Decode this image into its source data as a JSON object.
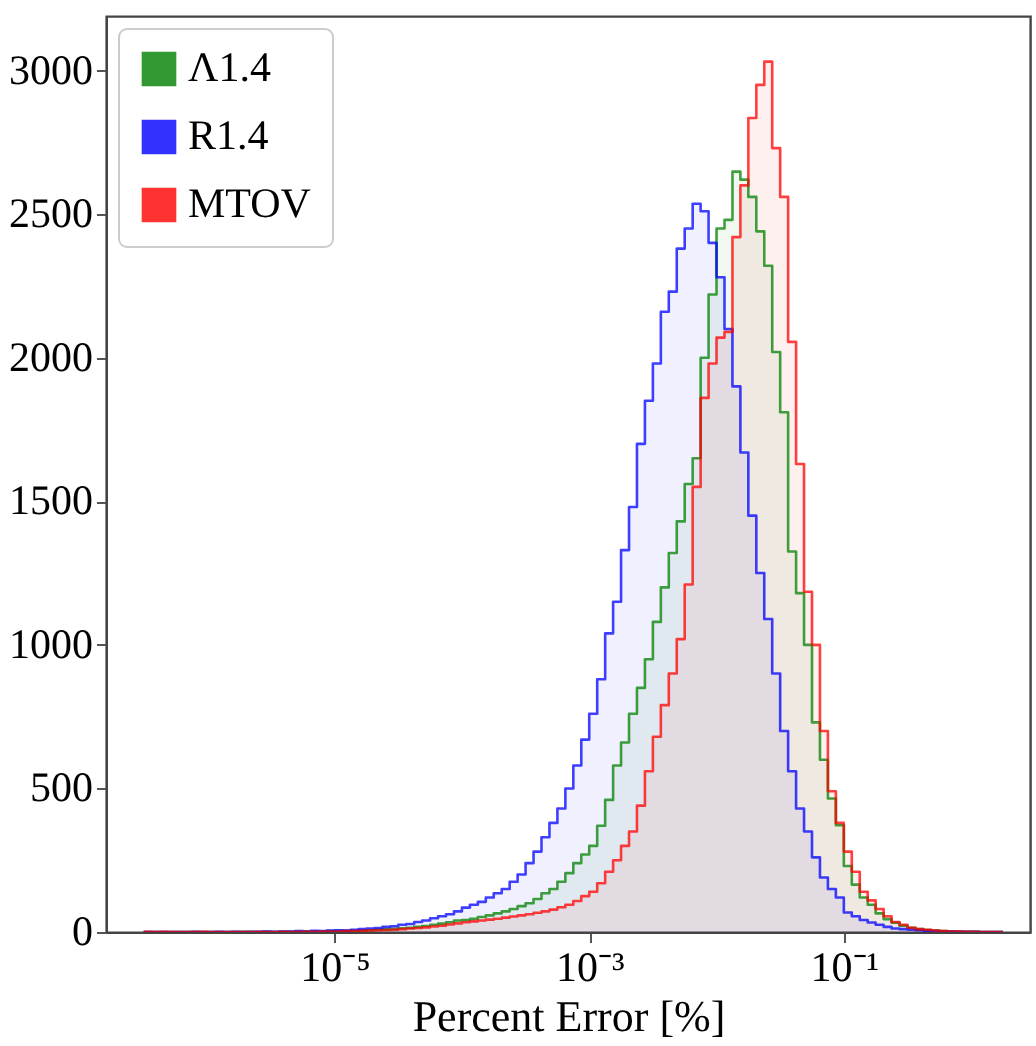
{
  "chart_data": {
    "type": "histogram",
    "xlabel": "Percent Error [%]",
    "log": "x",
    "grid": false,
    "legend": "top left",
    "xlim": [
      1.6e-07,
      2.9
    ],
    "ylim": [
      0,
      3190
    ],
    "xticks": [
      {
        "value": 1e-05,
        "label": "10⁻⁵"
      },
      {
        "value": 0.001,
        "label": "10⁻³"
      },
      {
        "value": 0.1,
        "label": "10⁻¹"
      }
    ],
    "yticks": [
      0,
      500,
      1000,
      1500,
      2000,
      2500,
      3000
    ],
    "bins": [
      3.162e-07,
      3.652e-07,
      4.217e-07,
      4.87e-07,
      5.623e-07,
      6.494e-07,
      7.499e-07,
      8.66e-07,
      1e-06,
      1.155e-06,
      1.334e-06,
      1.54e-06,
      1.778e-06,
      2.054e-06,
      2.371e-06,
      2.738e-06,
      3.162e-06,
      3.652e-06,
      4.217e-06,
      4.87e-06,
      5.623e-06,
      6.494e-06,
      7.499e-06,
      8.66e-06,
      1e-05,
      1.155e-05,
      1.334e-05,
      1.54e-05,
      1.778e-05,
      2.054e-05,
      2.371e-05,
      2.738e-05,
      3.162e-05,
      3.652e-05,
      4.217e-05,
      4.87e-05,
      5.623e-05,
      6.494e-05,
      7.499e-05,
      8.66e-05,
      0.0001,
      0.0001155,
      0.0001334,
      0.000154,
      0.0001778,
      0.0002054,
      0.0002371,
      0.0002738,
      0.0003162,
      0.0003652,
      0.0004217,
      0.000487,
      0.0005623,
      0.0006494,
      0.0007499,
      0.000866,
      0.001,
      0.001155,
      0.001334,
      0.00154,
      0.001778,
      0.002054,
      0.002371,
      0.002738,
      0.003162,
      0.003652,
      0.004217,
      0.00487,
      0.005623,
      0.006494,
      0.007499,
      0.00866,
      0.01,
      0.01155,
      0.01334,
      0.0154,
      0.01778,
      0.02054,
      0.02371,
      0.02738,
      0.03162,
      0.03652,
      0.04217,
      0.0487,
      0.05623,
      0.06494,
      0.07499,
      0.0866,
      0.1,
      0.1155,
      0.1334,
      0.154,
      0.1778,
      0.2054,
      0.2371,
      0.2738,
      0.3162,
      0.3652,
      0.4217,
      0.487,
      0.5623,
      0.6494,
      0.7499,
      0.866,
      1,
      1.155,
      1.334,
      1.54,
      1.778
    ],
    "series": [
      {
        "name": "Λ1.4",
        "color": "#008000",
        "values": [
          0,
          0,
          0,
          0,
          0,
          0,
          0,
          0,
          0,
          0,
          0,
          0,
          1,
          0,
          0,
          1,
          0,
          1,
          1,
          1,
          2,
          1,
          2,
          3,
          3,
          4,
          4,
          5,
          6,
          8,
          9,
          11,
          13,
          15,
          18,
          21,
          25,
          29,
          34,
          40,
          42,
          46,
          52,
          58,
          65,
          72,
          80,
          90,
          100,
          115,
          135,
          150,
          175,
          205,
          240,
          270,
          300,
          370,
          460,
          580,
          660,
          760,
          850,
          950,
          1080,
          1200,
          1320,
          1430,
          1560,
          1650,
          2000,
          2220,
          2450,
          2480,
          2648,
          2620,
          2560,
          2440,
          2320,
          2020,
          1810,
          1325,
          1180,
          1000,
          730,
          600,
          465,
          372,
          230,
          165,
          120,
          95,
          65,
          45,
          32,
          22,
          15,
          10,
          7,
          5,
          3,
          2,
          2,
          1,
          1,
          0,
          0,
          0
        ]
      },
      {
        "name": "R1.4",
        "color": "#0000ff",
        "values": [
          0,
          0,
          0,
          0,
          0,
          0,
          1,
          0,
          0,
          1,
          0,
          1,
          0,
          1,
          1,
          2,
          1,
          2,
          2,
          3,
          2,
          4,
          3,
          5,
          6,
          5,
          8,
          10,
          12,
          14,
          18,
          20,
          25,
          28,
          35,
          40,
          48,
          55,
          62,
          72,
          85,
          95,
          105,
          120,
          135,
          150,
          175,
          200,
          240,
          280,
          330,
          380,
          430,
          500,
          580,
          670,
          760,
          880,
          1040,
          1150,
          1330,
          1480,
          1700,
          1850,
          1980,
          2160,
          2230,
          2380,
          2450,
          2536,
          2510,
          2400,
          2280,
          2100,
          1900,
          1670,
          1450,
          1250,
          1090,
          900,
          700,
          560,
          430,
          350,
          260,
          190,
          150,
          120,
          68,
          55,
          42,
          33,
          25,
          18,
          12,
          10,
          8,
          6,
          4,
          3,
          2,
          2,
          1,
          1,
          1,
          0,
          0,
          0
        ]
      },
      {
        "name": "MTOV",
        "color": "#ff0000",
        "values": [
          1,
          0,
          1,
          0,
          0,
          0,
          0,
          1,
          0,
          0,
          0,
          0,
          0,
          0,
          1,
          0,
          0,
          1,
          0,
          1,
          1,
          1,
          2,
          2,
          2,
          3,
          3,
          4,
          5,
          6,
          7,
          8,
          10,
          12,
          14,
          16,
          19,
          22,
          26,
          30,
          34,
          37,
          40,
          43,
          46,
          50,
          54,
          58,
          62,
          67,
          72,
          78,
          86,
          95,
          108,
          125,
          140,
          170,
          210,
          250,
          300,
          350,
          440,
          560,
          680,
          790,
          900,
          1020,
          1210,
          1550,
          1860,
          1980,
          2070,
          2090,
          2420,
          2600,
          2835,
          2950,
          3031,
          2730,
          2560,
          2055,
          1630,
          1185,
          1000,
          700,
          490,
          380,
          280,
          210,
          140,
          110,
          80,
          55,
          35,
          25,
          15,
          10,
          8,
          5,
          3,
          2,
          2,
          1,
          1,
          0,
          0,
          0
        ]
      }
    ]
  }
}
